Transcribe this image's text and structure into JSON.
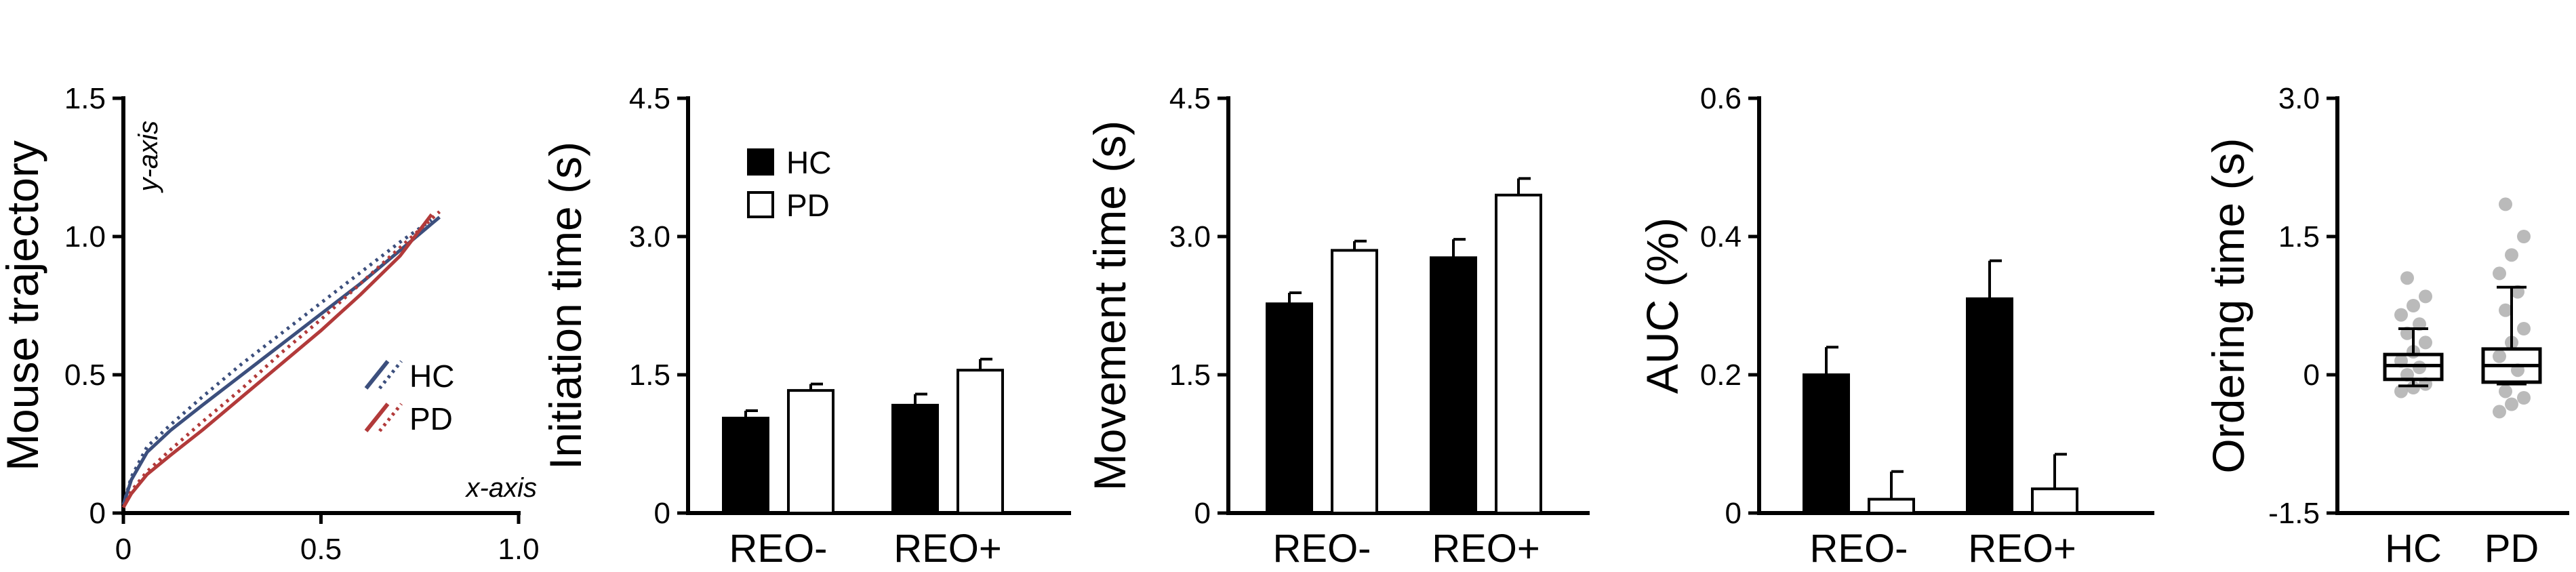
{
  "chart_data": [
    {
      "type": "line",
      "ylabel": "Mouse trajectory",
      "x_axis_note": "x-axis",
      "y_axis_note": "y-axis",
      "xlim": [
        0,
        1.0
      ],
      "ylim": [
        0,
        1.5
      ],
      "xticks": [
        "0",
        "0.5",
        "1.0"
      ],
      "yticks": [
        "0",
        "0.5",
        "1.0",
        "1.5"
      ],
      "legend": [
        "HC",
        "PD"
      ],
      "series": [
        {
          "name": "HC",
          "color": "#3c4f7d",
          "style": "solid",
          "x": [
            0,
            0.02,
            0.06,
            0.12,
            0.2,
            0.3,
            0.4,
            0.5,
            0.6,
            0.7,
            0.8
          ],
          "y": [
            0.03,
            0.12,
            0.22,
            0.3,
            0.39,
            0.5,
            0.61,
            0.72,
            0.83,
            0.95,
            1.07
          ]
        },
        {
          "name": "HC",
          "color": "#3c4f7d",
          "style": "dotted",
          "x": [
            0,
            0.02,
            0.06,
            0.12,
            0.2,
            0.3,
            0.4,
            0.5,
            0.6,
            0.7,
            0.78
          ],
          "y": [
            0.03,
            0.13,
            0.24,
            0.32,
            0.42,
            0.54,
            0.65,
            0.76,
            0.87,
            0.98,
            1.06
          ]
        },
        {
          "name": "PD",
          "color": "#b23a3a",
          "style": "solid",
          "x": [
            0,
            0.02,
            0.06,
            0.12,
            0.2,
            0.3,
            0.4,
            0.5,
            0.6,
            0.7,
            0.78
          ],
          "y": [
            0.02,
            0.07,
            0.14,
            0.21,
            0.3,
            0.42,
            0.54,
            0.66,
            0.79,
            0.93,
            1.08
          ]
        },
        {
          "name": "PD",
          "color": "#b23a3a",
          "style": "dotted",
          "x": [
            0,
            0.02,
            0.06,
            0.12,
            0.2,
            0.3,
            0.4,
            0.5,
            0.6,
            0.7,
            0.8
          ],
          "y": [
            0.02,
            0.08,
            0.15,
            0.23,
            0.33,
            0.45,
            0.58,
            0.7,
            0.83,
            0.96,
            1.09
          ]
        }
      ]
    },
    {
      "type": "bar",
      "ylabel": "Initiation time (s)",
      "ylim": [
        0,
        4.5
      ],
      "yticks": [
        "0",
        "1.5",
        "3.0",
        "4.5"
      ],
      "categories": [
        "REO-",
        "REO+"
      ],
      "legend": [
        "HC",
        "PD"
      ],
      "series": [
        {
          "name": "HC",
          "fill": "#000000",
          "values": [
            1.03,
            1.17
          ],
          "errors": [
            0.08,
            0.12
          ]
        },
        {
          "name": "PD",
          "fill": "#ffffff",
          "values": [
            1.33,
            1.55
          ],
          "errors": [
            0.07,
            0.12
          ]
        }
      ]
    },
    {
      "type": "bar",
      "ylabel": "Movement time (s)",
      "ylim": [
        0,
        4.5
      ],
      "yticks": [
        "0",
        "1.5",
        "3.0",
        "4.5"
      ],
      "categories": [
        "REO-",
        "REO+"
      ],
      "series": [
        {
          "name": "HC",
          "fill": "#000000",
          "values": [
            2.27,
            2.77
          ],
          "errors": [
            0.12,
            0.2
          ]
        },
        {
          "name": "PD",
          "fill": "#ffffff",
          "values": [
            2.85,
            3.45
          ],
          "errors": [
            0.1,
            0.18
          ]
        }
      ]
    },
    {
      "type": "bar",
      "ylabel": "AUC (%)",
      "ylim": [
        0,
        0.6
      ],
      "yticks": [
        "0",
        "0.2",
        "0.4",
        "0.6"
      ],
      "categories": [
        "REO-",
        "REO+"
      ],
      "series": [
        {
          "name": "HC",
          "fill": "#000000",
          "values": [
            0.2,
            0.31
          ],
          "errors": [
            0.04,
            0.055
          ]
        },
        {
          "name": "PD",
          "fill": "#ffffff",
          "values": [
            0.02,
            0.035
          ],
          "errors": [
            0.04,
            0.05
          ]
        }
      ]
    },
    {
      "type": "box",
      "ylabel": "Ordering time (s)",
      "ylim": [
        -1.5,
        3.0
      ],
      "yticks": [
        "-1.5",
        "0",
        "1.5",
        "3.0"
      ],
      "categories": [
        "HC",
        "PD"
      ],
      "boxes": [
        {
          "name": "HC",
          "min": -0.12,
          "q1": -0.05,
          "median": 0.1,
          "q3": 0.22,
          "max": 0.5,
          "points": [
            -0.18,
            -0.14,
            -0.1,
            0.0,
            0.08,
            0.15,
            0.25,
            0.35,
            0.45,
            0.55,
            0.65,
            0.75,
            0.85,
            1.05
          ]
        },
        {
          "name": "PD",
          "min": -0.1,
          "q1": -0.08,
          "median": 0.1,
          "q3": 0.28,
          "max": 0.95,
          "points": [
            -0.4,
            -0.32,
            -0.25,
            -0.18,
            0.05,
            0.2,
            0.35,
            0.5,
            0.7,
            0.9,
            1.1,
            1.3,
            1.5,
            1.85
          ]
        }
      ],
      "point_color": "#b3b3b3"
    }
  ]
}
